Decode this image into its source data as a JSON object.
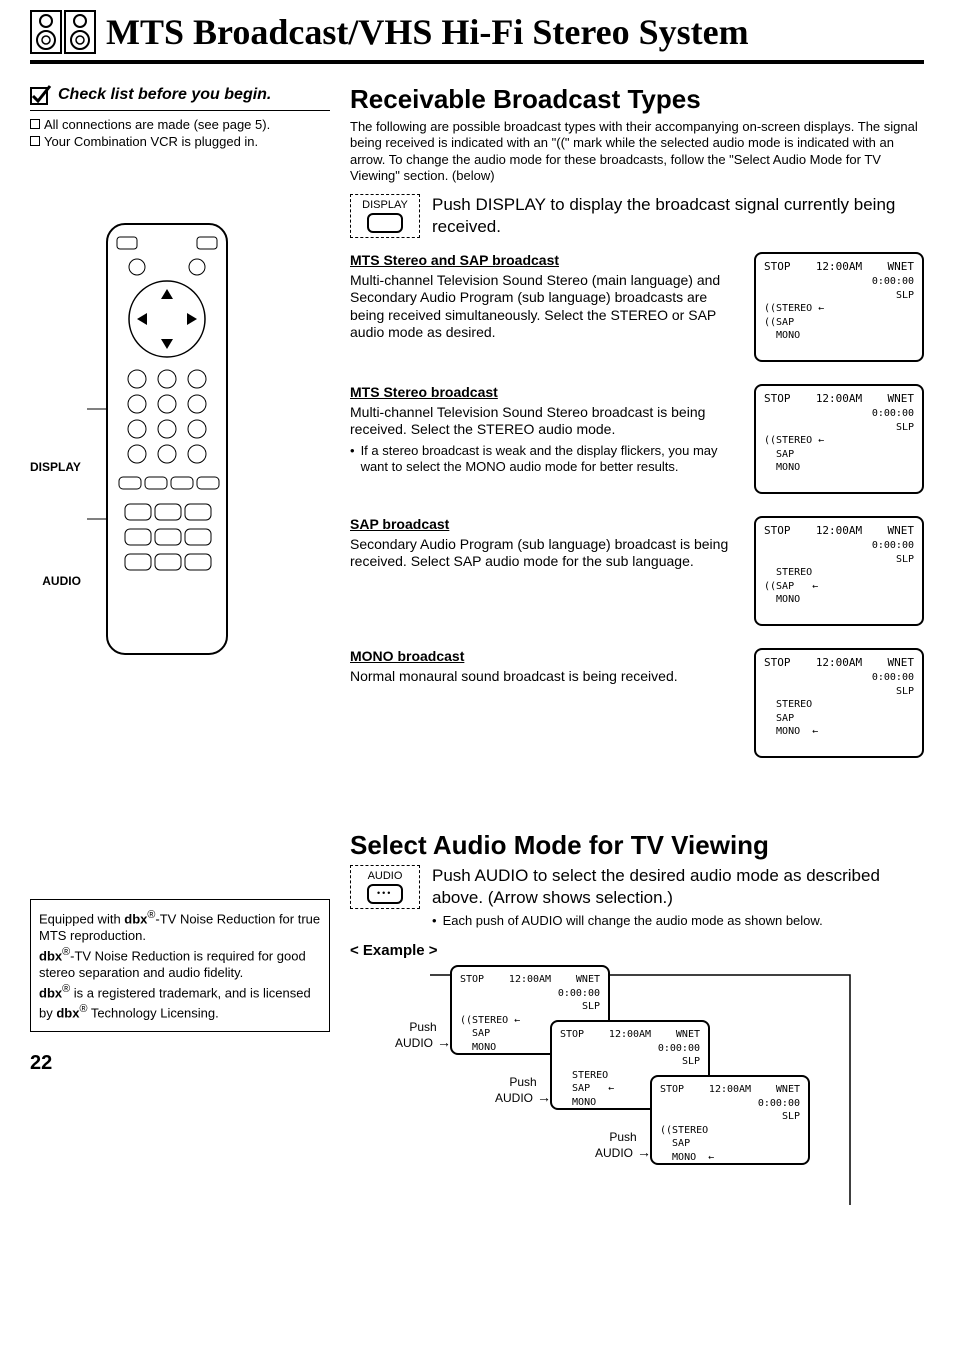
{
  "title": "MTS Broadcast/VHS Hi-Fi Stereo System",
  "page_number": "22",
  "checklist": {
    "heading": "Check list before you begin.",
    "items": [
      "All connections are made (see page 5).",
      "Your Combination VCR is plugged in."
    ]
  },
  "remote_labels": {
    "display": "DISPLAY",
    "audio": "AUDIO"
  },
  "dbx_box": "Equipped with dbx®-TV Noise Reduction for true MTS reproduction. dbx®-TV Noise Reduction is required for good stereo separation and audio fidelity. dbx® is a registered trademark, and is licensed by dbx® Technology Licensing.",
  "section1": {
    "title": "Receivable Broadcast Types",
    "intro": "The following are possible broadcast types with their accompanying on-screen displays. The signal being received is indicated with an \"((\" mark while the selected audio mode is indicated with an arrow. To change the audio mode for these broadcasts, follow the \"Select Audio Mode for TV Viewing\" section. (below)",
    "action_btn": "DISPLAY",
    "action_text": "Push DISPLAY to display the broadcast signal currently being received."
  },
  "osd_common": {
    "stop": "STOP",
    "time": "12:00AM",
    "ch": "WNET",
    "counter": "0:00:00",
    "speed": "SLP"
  },
  "broadcasts": [
    {
      "title": "MTS Stereo and SAP broadcast",
      "body": "Multi-channel Television Sound Stereo (main language) and Secondary Audio Program (sub language) broadcasts are being received simultaneously. Select the STEREO or SAP audio mode as desired.",
      "lines": [
        "((STEREO ←",
        "((SAP",
        "  MONO"
      ]
    },
    {
      "title": "MTS Stereo broadcast",
      "body": "Multi-channel Television Sound Stereo broadcast is being received. Select the STEREO audio mode.",
      "bullet": "If a stereo broadcast is weak and the display flickers, you may want to select the MONO audio mode for better results.",
      "lines": [
        "((STEREO ←",
        "  SAP",
        "  MONO"
      ]
    },
    {
      "title": "SAP broadcast",
      "body": "Secondary Audio Program (sub language) broadcast is being received. Select SAP audio mode for the sub language.",
      "lines": [
        "  STEREO",
        "((SAP   ←",
        "  MONO"
      ]
    },
    {
      "title": "MONO broadcast",
      "body": "Normal monaural sound broadcast is being received.",
      "lines": [
        "  STEREO",
        "  SAP",
        "  MONO  ←"
      ]
    }
  ],
  "section2": {
    "title": "Select Audio Mode for TV Viewing",
    "action_btn": "AUDIO",
    "action_text": "Push AUDIO to select the desired audio mode as described above. (Arrow shows selection.)",
    "bullet": "Each push of AUDIO will change the audio mode as shown below.",
    "example_label": "< Example >",
    "push_label": "Push\nAUDIO",
    "steps": [
      {
        "lines": [
          "((STEREO ←",
          "  SAP",
          "  MONO"
        ]
      },
      {
        "lines": [
          "  STEREO",
          "  SAP   ←",
          "  MONO"
        ]
      },
      {
        "lines": [
          "((STEREO",
          "  SAP",
          "  MONO  ←"
        ]
      }
    ]
  }
}
